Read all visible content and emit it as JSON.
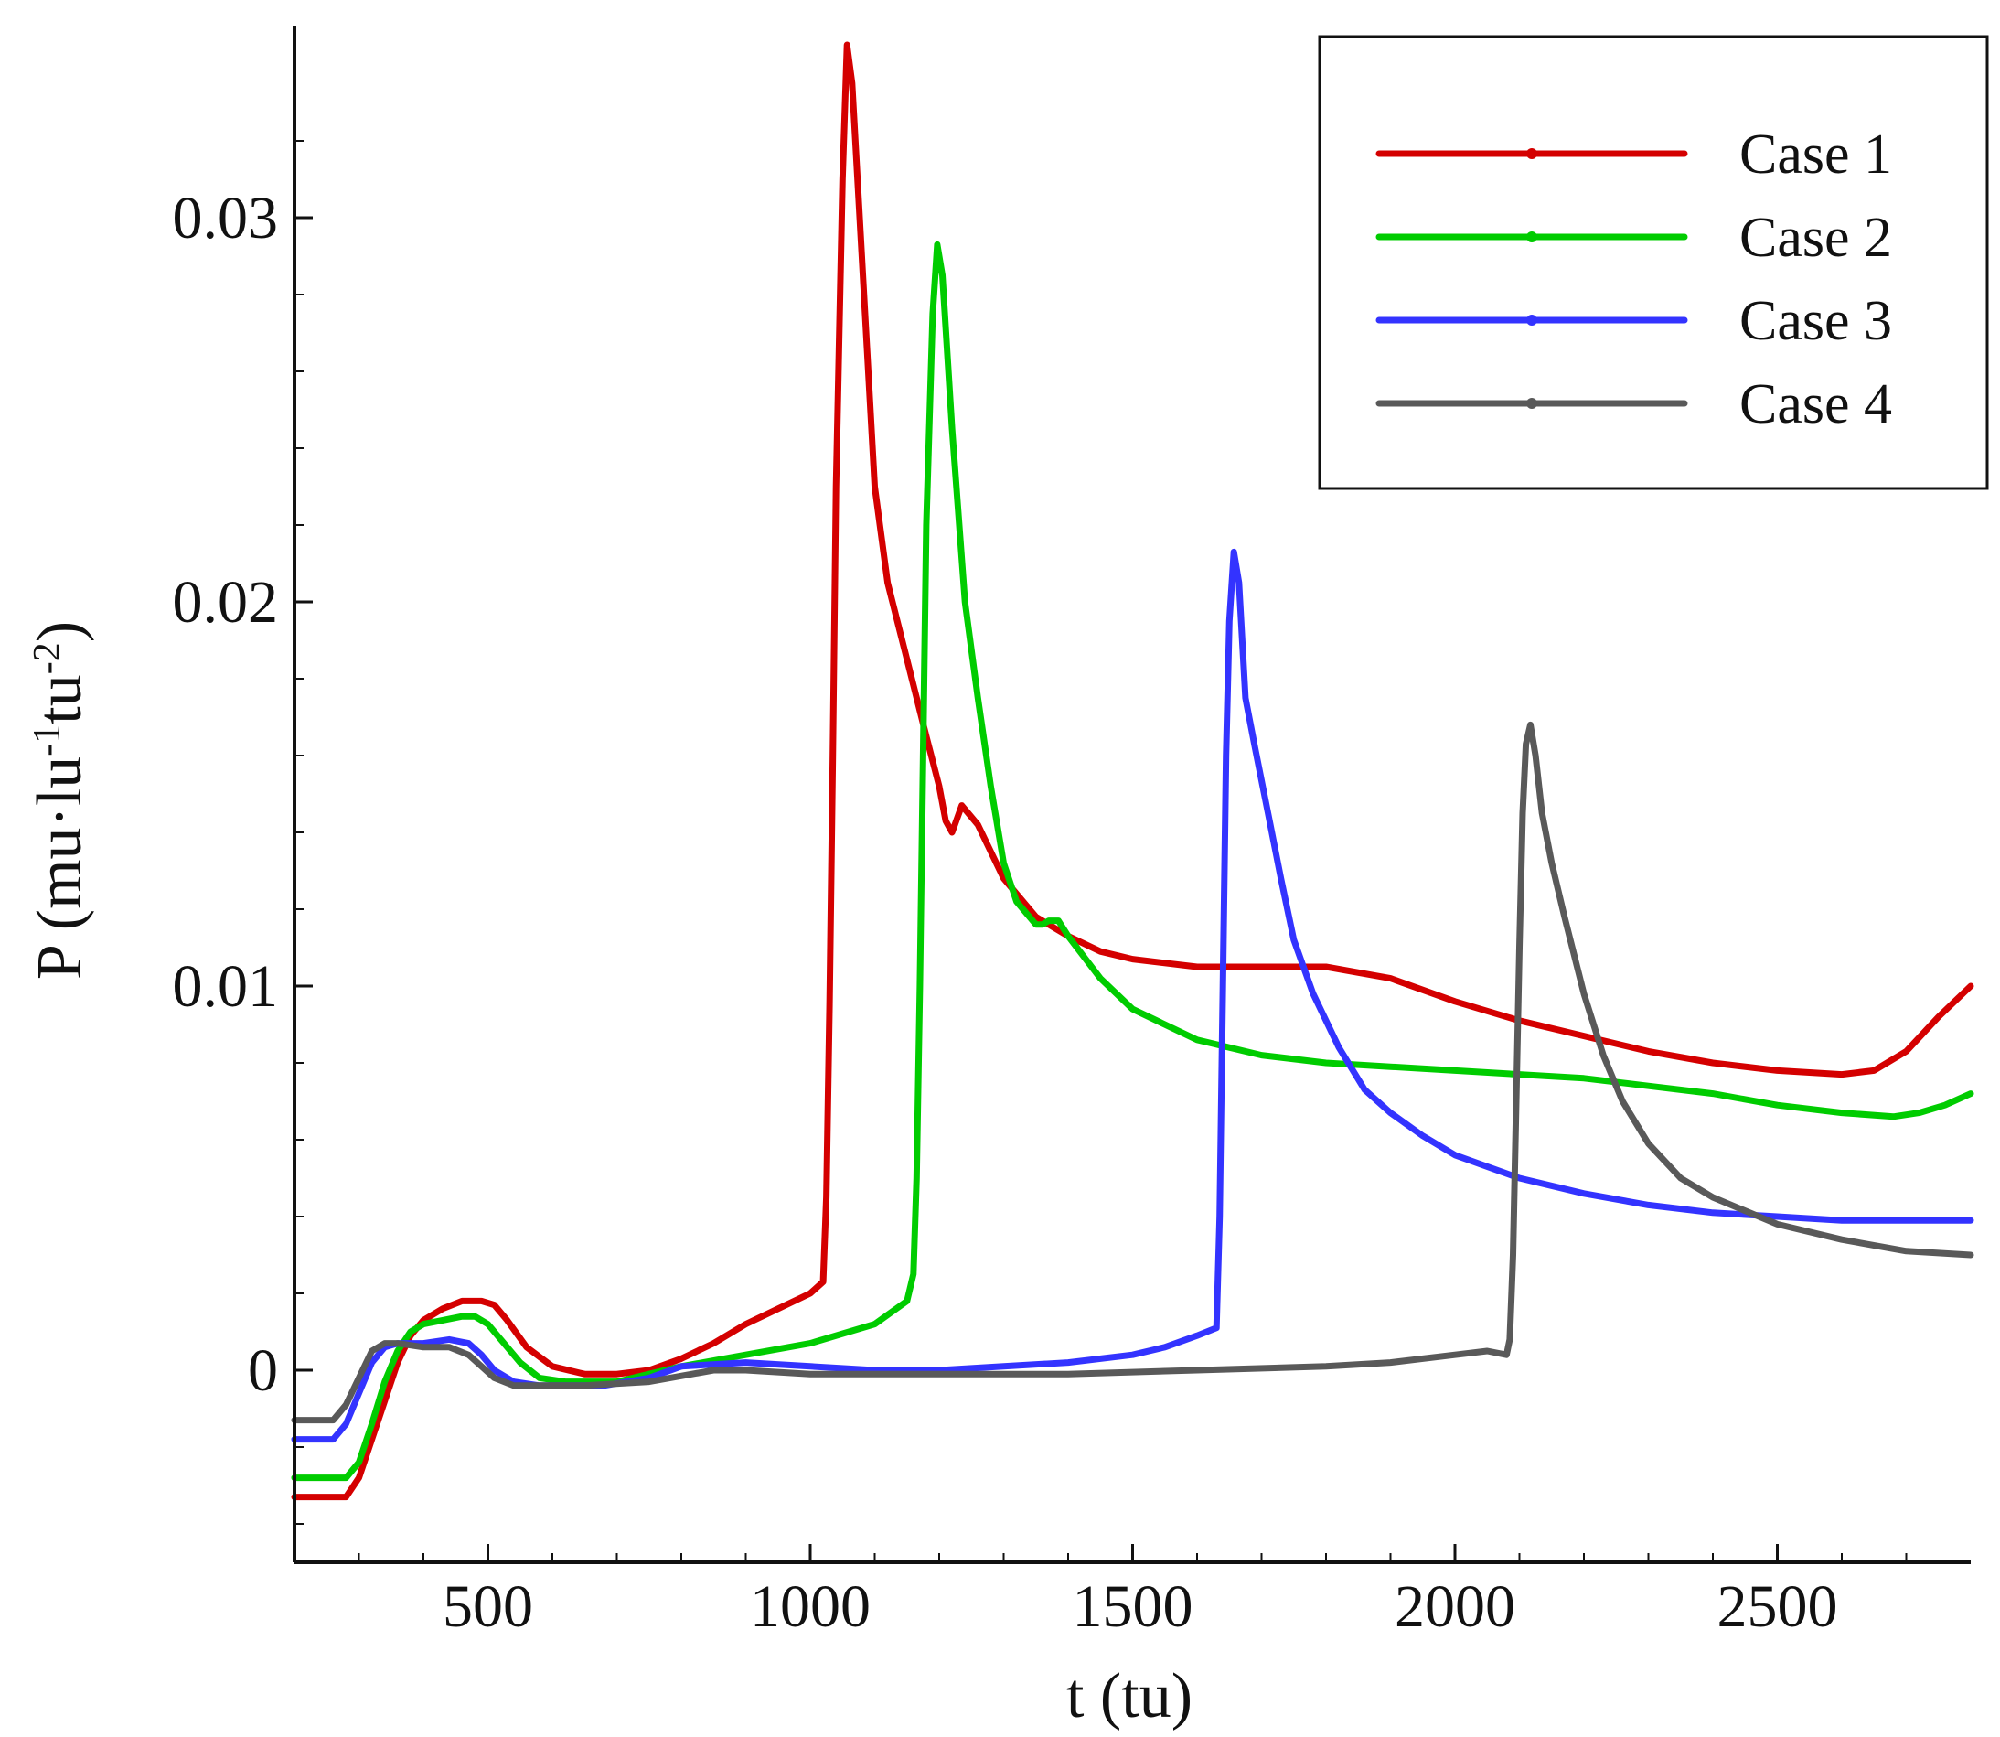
{
  "chart_data": {
    "type": "line",
    "xlabel": "t (tu)",
    "ylabel_main": "P (mu·lu",
    "ylabel_sup1": "-1",
    "ylabel_mid": "tu",
    "ylabel_sup2": "-2",
    "ylabel_end": ")",
    "xlim": [
      200,
      2800
    ],
    "ylim": [
      -0.005,
      0.035
    ],
    "xticks": [
      500,
      1000,
      1500,
      2000,
      2500
    ],
    "xtick_labels": [
      "500",
      "1000",
      "1500",
      "2000",
      "2500"
    ],
    "yticks": [
      0,
      0.01,
      0.02,
      0.03
    ],
    "ytick_labels": [
      "0",
      "0.01",
      "0.02",
      "0.03"
    ],
    "legend_position": "top-right",
    "colors": {
      "case1": "#d40000",
      "case2": "#00cc00",
      "case3": "#3333ff",
      "case4": "#595959",
      "axis": "#111111"
    },
    "series": [
      {
        "name": "Case 1",
        "key": "case1",
        "x": [
          200,
          280,
          300,
          320,
          340,
          360,
          380,
          400,
          430,
          460,
          490,
          510,
          530,
          560,
          600,
          650,
          700,
          750,
          800,
          850,
          900,
          950,
          1000,
          1020,
          1025,
          1030,
          1035,
          1040,
          1050,
          1057,
          1065,
          1080,
          1100,
          1120,
          1150,
          1180,
          1200,
          1210,
          1220,
          1235,
          1260,
          1300,
          1350,
          1400,
          1450,
          1500,
          1600,
          1700,
          1800,
          1900,
          2000,
          2100,
          2200,
          2300,
          2400,
          2500,
          2600,
          2650,
          2700,
          2750,
          2800
        ],
        "y": [
          -0.0033,
          -0.0033,
          -0.0028,
          -0.0018,
          -0.0008,
          0.0002,
          0.0009,
          0.0013,
          0.0016,
          0.0018,
          0.0018,
          0.0017,
          0.0013,
          0.0006,
          0.0001,
          -0.0001,
          -0.0001,
          0.0,
          0.0003,
          0.0007,
          0.0012,
          0.0016,
          0.002,
          0.0023,
          0.0045,
          0.0095,
          0.016,
          0.023,
          0.031,
          0.0345,
          0.0335,
          0.029,
          0.023,
          0.0205,
          0.0185,
          0.0165,
          0.0152,
          0.0143,
          0.014,
          0.0147,
          0.0142,
          0.0128,
          0.0118,
          0.0113,
          0.0109,
          0.0107,
          0.0105,
          0.0105,
          0.0105,
          0.0102,
          0.0096,
          0.0091,
          0.0087,
          0.0083,
          0.008,
          0.0078,
          0.0077,
          0.0078,
          0.0083,
          0.0092,
          0.01
        ]
      },
      {
        "name": "Case 2",
        "key": "case2",
        "x": [
          200,
          280,
          300,
          320,
          340,
          360,
          380,
          400,
          430,
          460,
          480,
          500,
          520,
          550,
          580,
          620,
          700,
          750,
          800,
          900,
          1000,
          1100,
          1150,
          1160,
          1165,
          1170,
          1175,
          1180,
          1190,
          1197,
          1205,
          1220,
          1240,
          1260,
          1280,
          1300,
          1320,
          1350,
          1360,
          1370,
          1385,
          1400,
          1450,
          1500,
          1600,
          1700,
          1800,
          1900,
          2000,
          2100,
          2200,
          2300,
          2400,
          2500,
          2600,
          2680,
          2720,
          2760,
          2800
        ],
        "y": [
          -0.0028,
          -0.0028,
          -0.0024,
          -0.0014,
          -0.0003,
          0.0005,
          0.001,
          0.0012,
          0.0013,
          0.0014,
          0.0014,
          0.0012,
          0.0008,
          0.0002,
          -0.0002,
          -0.0003,
          -0.0003,
          -0.0001,
          0.0001,
          0.0004,
          0.0007,
          0.0012,
          0.0018,
          0.0025,
          0.005,
          0.01,
          0.016,
          0.022,
          0.0275,
          0.0293,
          0.0285,
          0.0245,
          0.02,
          0.0175,
          0.0152,
          0.0132,
          0.0122,
          0.0116,
          0.0116,
          0.0117,
          0.0117,
          0.0113,
          0.0102,
          0.0094,
          0.0086,
          0.0082,
          0.008,
          0.0079,
          0.0078,
          0.0077,
          0.0076,
          0.0074,
          0.0072,
          0.0069,
          0.0067,
          0.0066,
          0.0067,
          0.0069,
          0.0072
        ]
      },
      {
        "name": "Case 3",
        "key": "case3",
        "x": [
          200,
          260,
          280,
          300,
          320,
          340,
          360,
          400,
          440,
          470,
          490,
          510,
          540,
          580,
          620,
          680,
          750,
          800,
          900,
          1000,
          1100,
          1200,
          1300,
          1400,
          1500,
          1550,
          1600,
          1630,
          1635,
          1640,
          1645,
          1650,
          1657,
          1665,
          1675,
          1690,
          1710,
          1730,
          1750,
          1780,
          1820,
          1860,
          1900,
          1950,
          2000,
          2100,
          2200,
          2300,
          2400,
          2500,
          2600,
          2700,
          2800
        ],
        "y": [
          -0.0018,
          -0.0018,
          -0.0014,
          -0.0006,
          0.0002,
          0.0006,
          0.0007,
          0.0007,
          0.0008,
          0.0007,
          0.0004,
          0.0,
          -0.0003,
          -0.0004,
          -0.0004,
          -0.0004,
          -0.0002,
          0.0001,
          0.0002,
          0.0001,
          0.0,
          0.0,
          0.0001,
          0.0002,
          0.0004,
          0.0006,
          0.0009,
          0.0011,
          0.004,
          0.01,
          0.016,
          0.0195,
          0.0213,
          0.0205,
          0.0175,
          0.0162,
          0.0145,
          0.0128,
          0.0112,
          0.0098,
          0.0084,
          0.0073,
          0.0067,
          0.0061,
          0.0056,
          0.005,
          0.0046,
          0.0043,
          0.0041,
          0.004,
          0.0039,
          0.0039,
          0.0039
        ]
      },
      {
        "name": "Case 4",
        "key": "case4",
        "x": [
          200,
          260,
          280,
          300,
          320,
          340,
          360,
          400,
          440,
          470,
          490,
          510,
          540,
          580,
          650,
          750,
          850,
          900,
          1000,
          1200,
          1400,
          1600,
          1800,
          1900,
          2000,
          2050,
          2080,
          2085,
          2090,
          2095,
          2100,
          2105,
          2110,
          2117,
          2125,
          2135,
          2150,
          2170,
          2200,
          2230,
          2260,
          2300,
          2350,
          2400,
          2500,
          2600,
          2700,
          2800
        ],
        "y": [
          -0.0013,
          -0.0013,
          -0.0009,
          -0.0002,
          0.0005,
          0.0007,
          0.0007,
          0.0006,
          0.0006,
          0.0004,
          0.0001,
          -0.0002,
          -0.0004,
          -0.0004,
          -0.0004,
          -0.0003,
          0.0,
          0.0,
          -0.0001,
          -0.0001,
          -0.0001,
          0.0,
          0.0001,
          0.0002,
          0.0004,
          0.0005,
          0.0004,
          0.0008,
          0.003,
          0.007,
          0.011,
          0.0145,
          0.0163,
          0.0168,
          0.016,
          0.0145,
          0.0132,
          0.0118,
          0.0098,
          0.0082,
          0.007,
          0.0059,
          0.005,
          0.0045,
          0.0038,
          0.0034,
          0.0031,
          0.003
        ]
      }
    ]
  }
}
